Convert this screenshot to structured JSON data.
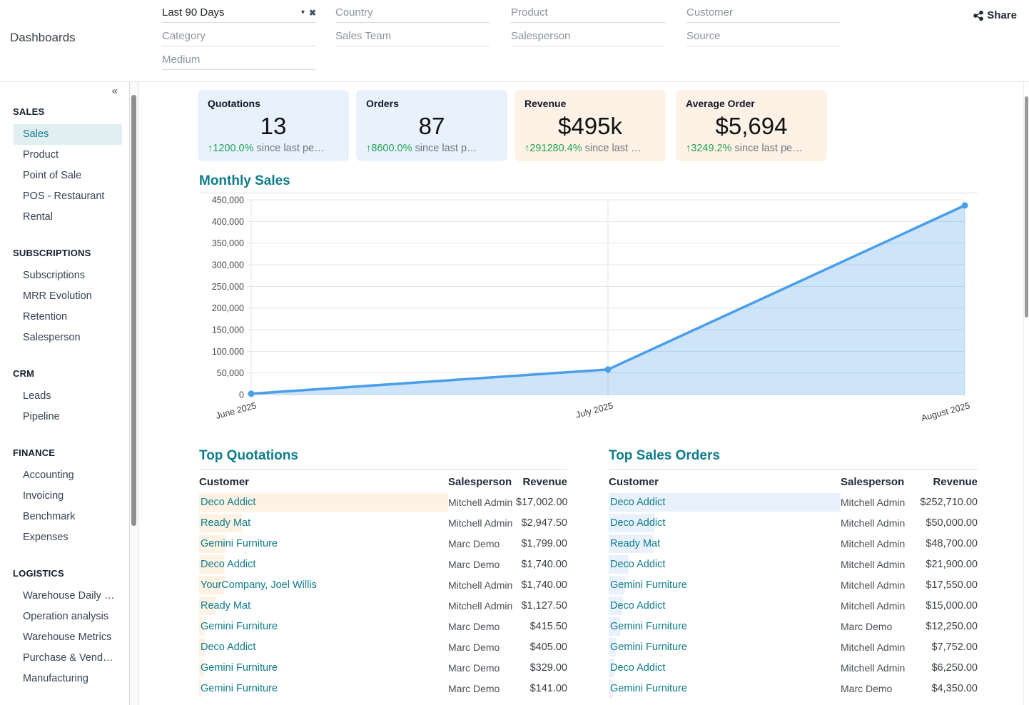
{
  "header": {
    "title": "Dashboards",
    "share_label": "Share",
    "filters": [
      {
        "items": [
          {
            "text": "Last 90 Days",
            "is_value": true
          },
          {
            "text": "Category"
          },
          {
            "text": "Medium"
          }
        ]
      },
      {
        "items": [
          {
            "text": "Country"
          },
          {
            "text": "Sales Team"
          }
        ]
      },
      {
        "items": [
          {
            "text": "Product"
          },
          {
            "text": "Salesperson"
          }
        ]
      },
      {
        "items": [
          {
            "text": "Customer"
          },
          {
            "text": "Source"
          }
        ]
      }
    ]
  },
  "icons": {
    "collapse": "«",
    "caret": "▾",
    "clear": "✖",
    "trend_up": "↑"
  },
  "colors": {
    "accent_teal": "#0f7c8c",
    "green": "#23a455",
    "card_blue": "#e8f1fc",
    "card_cream": "#fdf2e5",
    "bar_cream": "#fdf2e4",
    "bar_blue": "#e9f1fc",
    "chart_line": "#4a9eea",
    "chart_fill": "rgba(74,158,234,0.28)"
  },
  "sidebar": {
    "sections": [
      {
        "label": "SALES",
        "items": [
          {
            "label": "Sales",
            "selected": true
          },
          {
            "label": "Product"
          },
          {
            "label": "Point of Sale"
          },
          {
            "label": "POS - Restaurant"
          },
          {
            "label": "Rental"
          }
        ]
      },
      {
        "label": "SUBSCRIPTIONS",
        "items": [
          {
            "label": "Subscriptions"
          },
          {
            "label": "MRR Evolution"
          },
          {
            "label": "Retention"
          },
          {
            "label": "Salesperson"
          }
        ]
      },
      {
        "label": "CRM",
        "items": [
          {
            "label": "Leads"
          },
          {
            "label": "Pipeline"
          }
        ]
      },
      {
        "label": "FINANCE",
        "items": [
          {
            "label": "Accounting"
          },
          {
            "label": "Invoicing"
          },
          {
            "label": "Benchmark"
          },
          {
            "label": "Expenses"
          }
        ]
      },
      {
        "label": "LOGISTICS",
        "items": [
          {
            "label": "Warehouse Daily …"
          },
          {
            "label": "Operation analysis"
          },
          {
            "label": "Warehouse Metrics"
          },
          {
            "label": "Purchase & Vend…"
          },
          {
            "label": "Manufacturing"
          }
        ]
      }
    ]
  },
  "kpis": [
    {
      "label": "Quotations",
      "value": "13",
      "delta_pct": "1200.0%",
      "delta_suffix": "since last pe…"
    },
    {
      "label": "Orders",
      "value": "87",
      "delta_pct": "8600.0%",
      "delta_suffix": "since last p…"
    },
    {
      "label": "Revenue",
      "value": "$495k",
      "delta_pct": "291280.4%",
      "delta_suffix": "since last …"
    },
    {
      "label": "Average Order",
      "value": "$5,694",
      "delta_pct": "3249.2%",
      "delta_suffix": "since last pe…"
    }
  ],
  "chart_data": {
    "type": "area",
    "title": "Monthly Sales",
    "x": [
      "June 2025",
      "July 2025",
      "August 2025"
    ],
    "values": [
      2000,
      58000,
      437000
    ],
    "ylim": [
      0,
      450000
    ],
    "ytick_step": 50000,
    "ytick_labels": [
      "0",
      "50,000",
      "100,000",
      "150,000",
      "200,000",
      "250,000",
      "300,000",
      "350,000",
      "400,000",
      "450,000"
    ],
    "grid": true,
    "legend": "none"
  },
  "tables": [
    {
      "title": "Top Quotations",
      "columns": [
        "Customer",
        "Salesperson",
        "Revenue"
      ],
      "bar_color_key": "bar_cream",
      "rows": [
        {
          "customer": "Deco Addict",
          "salesperson": "Mitchell Admin",
          "revenue": "$17,002.00"
        },
        {
          "customer": "Ready Mat",
          "salesperson": "Mitchell Admin",
          "revenue": "$2,947.50"
        },
        {
          "customer": "Gemini Furniture",
          "salesperson": "Marc Demo",
          "revenue": "$1,799.00"
        },
        {
          "customer": "Deco Addict",
          "salesperson": "Marc Demo",
          "revenue": "$1,740.00"
        },
        {
          "customer": "YourCompany, Joel Willis",
          "salesperson": "Mitchell Admin",
          "revenue": "$1,740.00"
        },
        {
          "customer": "Ready Mat",
          "salesperson": "Mitchell Admin",
          "revenue": "$1,127.50"
        },
        {
          "customer": "Gemini Furniture",
          "salesperson": "Marc Demo",
          "revenue": "$415.50"
        },
        {
          "customer": "Deco Addict",
          "salesperson": "Marc Demo",
          "revenue": "$405.00"
        },
        {
          "customer": "Gemini Furniture",
          "salesperson": "Marc Demo",
          "revenue": "$329.00"
        },
        {
          "customer": "Gemini Furniture",
          "salesperson": "Marc Demo",
          "revenue": "$141.00"
        }
      ]
    },
    {
      "title": "Top Sales Orders",
      "columns": [
        "Customer",
        "Salesperson",
        "Revenue"
      ],
      "bar_color_key": "bar_blue",
      "rows": [
        {
          "customer": "Deco Addict",
          "salesperson": "Mitchell Admin",
          "revenue": "$252,710.00"
        },
        {
          "customer": "Deco Addict",
          "salesperson": "Mitchell Admin",
          "revenue": "$50,000.00"
        },
        {
          "customer": "Ready Mat",
          "salesperson": "Mitchell Admin",
          "revenue": "$48,700.00"
        },
        {
          "customer": "Deco Addict",
          "salesperson": "Mitchell Admin",
          "revenue": "$21,900.00"
        },
        {
          "customer": "Gemini Furniture",
          "salesperson": "Mitchell Admin",
          "revenue": "$17,550.00"
        },
        {
          "customer": "Deco Addict",
          "salesperson": "Mitchell Admin",
          "revenue": "$15,000.00"
        },
        {
          "customer": "Gemini Furniture",
          "salesperson": "Marc Demo",
          "revenue": "$12,250.00"
        },
        {
          "customer": "Gemini Furniture",
          "salesperson": "Mitchell Admin",
          "revenue": "$7,752.00"
        },
        {
          "customer": "Deco Addict",
          "salesperson": "Mitchell Admin",
          "revenue": "$6,250.00"
        },
        {
          "customer": "Gemini Furniture",
          "salesperson": "Marc Demo",
          "revenue": "$4,350.00"
        }
      ]
    }
  ]
}
